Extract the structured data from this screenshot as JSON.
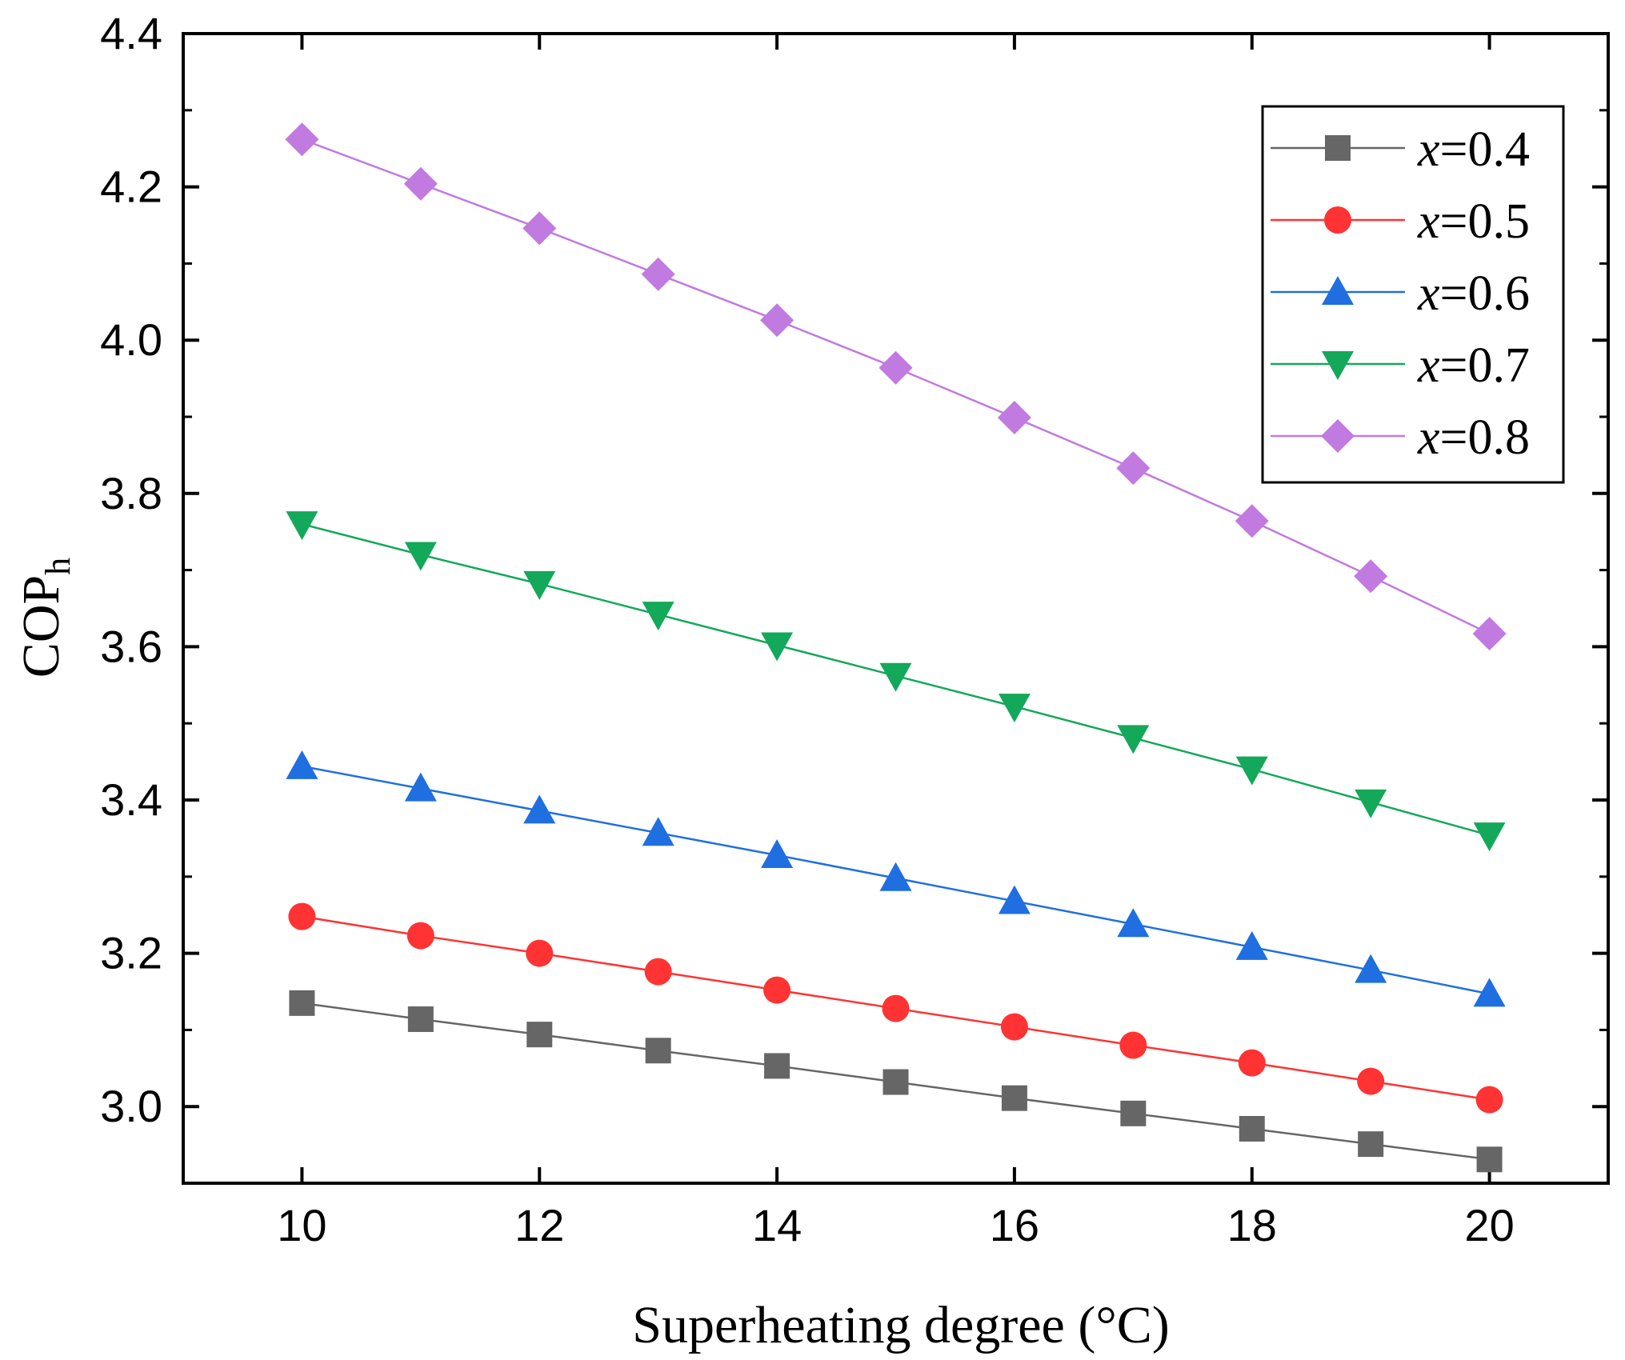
{
  "chart_data": {
    "type": "line",
    "title": "",
    "xlabel": "Superheating degree (°C)",
    "ylabel": {
      "main": "COP",
      "sub": "h"
    },
    "xlim": [
      9,
      21
    ],
    "ylim": [
      2.9,
      4.4
    ],
    "xticks": [
      10,
      12,
      14,
      16,
      18,
      20
    ],
    "xtick_labels": [
      "10",
      "12",
      "14",
      "16",
      "18",
      "20"
    ],
    "yticks": [
      3.0,
      3.2,
      3.4,
      3.6,
      3.8,
      4.0,
      4.2,
      4.4
    ],
    "ytick_labels": [
      "3.0",
      "3.2",
      "3.4",
      "3.6",
      "3.8",
      "4.0",
      "4.2",
      "4.4"
    ],
    "grid": false,
    "legend_position": "top-right",
    "x": [
      10,
      11,
      12,
      13,
      14,
      15,
      16,
      17,
      18,
      19,
      20
    ],
    "series": [
      {
        "name": "x=0.4",
        "var": "x",
        "eq": "=0.4",
        "marker": "square",
        "color": "#666666",
        "values": [
          3.135,
          3.114,
          3.094,
          3.073,
          3.053,
          3.032,
          3.011,
          2.991,
          2.971,
          2.951,
          2.931
        ]
      },
      {
        "name": "x=0.5",
        "var": "x",
        "eq": "=0.5",
        "marker": "circle",
        "color": "#ff3333",
        "values": [
          3.248,
          3.223,
          3.2,
          3.176,
          3.152,
          3.128,
          3.104,
          3.08,
          3.057,
          3.033,
          3.009
        ]
      },
      {
        "name": "x=0.6",
        "var": "x",
        "eq": "=0.6",
        "marker": "triangle-up",
        "color": "#1f6fe0",
        "values": [
          3.444,
          3.415,
          3.386,
          3.357,
          3.328,
          3.298,
          3.268,
          3.238,
          3.208,
          3.178,
          3.147
        ]
      },
      {
        "name": "x=0.7",
        "var": "x",
        "eq": "=0.7",
        "marker": "triangle-down",
        "color": "#14a85a",
        "values": [
          3.76,
          3.72,
          3.682,
          3.642,
          3.602,
          3.562,
          3.522,
          3.481,
          3.44,
          3.397,
          3.354
        ]
      },
      {
        "name": "x=0.8",
        "var": "x",
        "eq": "=0.8",
        "marker": "diamond",
        "color": "#c17ae0",
        "values": [
          4.262,
          4.204,
          4.146,
          4.086,
          4.026,
          3.964,
          3.899,
          3.833,
          3.764,
          3.692,
          3.617
        ]
      }
    ]
  }
}
